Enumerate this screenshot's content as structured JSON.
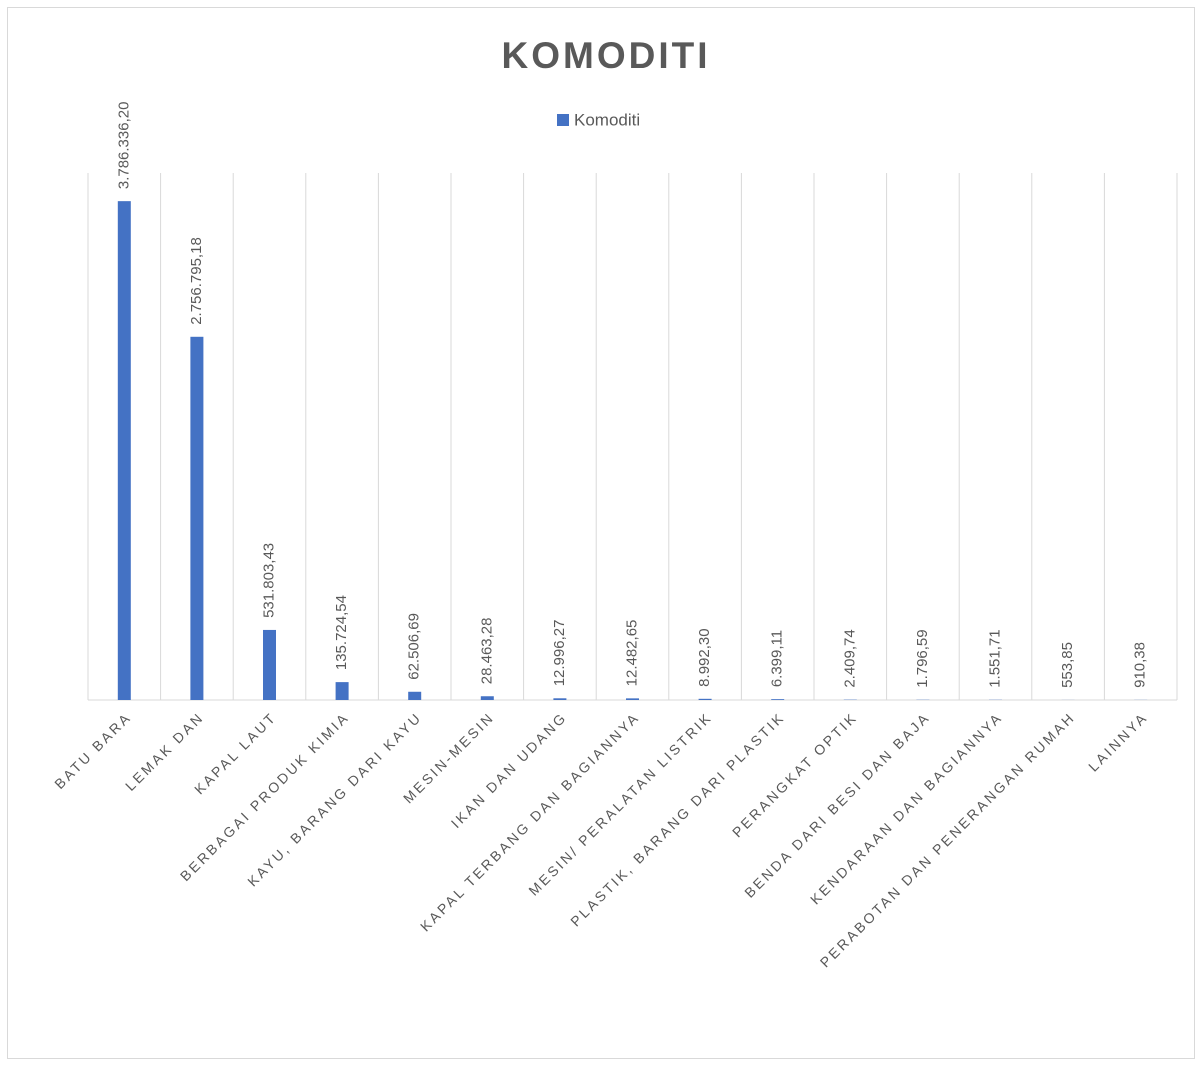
{
  "chart_data": {
    "type": "bar",
    "title": "KOMODITI",
    "categories": [
      "BATU BARA",
      "LEMAK DAN",
      "KAPAL LAUT",
      "BERBAGAI PRODUK KIMIA",
      "KAYU, BARANG DARI KAYU",
      "MESIN-MESIN",
      "IKAN DAN UDANG",
      "KAPAL TERBANG DAN BAGIANNYA",
      "MESIN/ PERALATAN LISTRIK",
      "PLASTIK, BARANG DARI PLASTIK",
      "PERANGKAT OPTIK",
      "BENDA DARI BESI DAN BAJA",
      "KENDARAAN DAN BAGIANNYA",
      "PERABOTAN DAN PENERANGAN RUMAH",
      "LAINNYA"
    ],
    "series": [
      {
        "name": "Komoditi",
        "color": "#4472c4",
        "values": [
          3786336.2,
          2756795.18,
          531803.43,
          135724.54,
          62506.69,
          28463.28,
          12996.27,
          12482.65,
          8992.3,
          6399.11,
          2409.74,
          1796.59,
          1551.71,
          553.85,
          910.38
        ],
        "value_labels": [
          "3.786.336,20",
          "2.756.795,18",
          "531.803,43",
          "135.724,54",
          "62.506,69",
          "28.463,28",
          "12.996,27",
          "12.482,65",
          "8.992,30",
          "6.399,11",
          "2.409,74",
          "1.796,59",
          "1.551,71",
          "553,85",
          "910,38"
        ]
      }
    ],
    "ylim": [
      0,
      4000000
    ],
    "legend": "top"
  }
}
